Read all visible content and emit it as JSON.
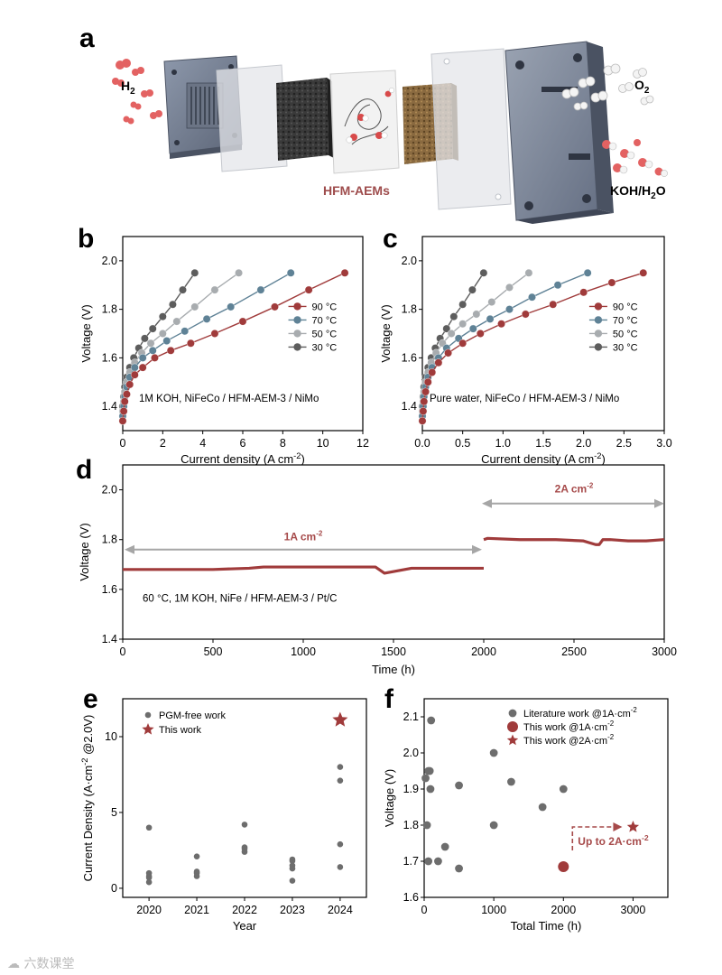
{
  "panel_labels": {
    "a": "a",
    "b": "b",
    "c": "c",
    "d": "d",
    "e": "e",
    "f": "f"
  },
  "panel_a": {
    "h2_label": "H",
    "h2_sub": "2",
    "o2_label": "O",
    "o2_sub": "2",
    "koh_label": "KOH/H",
    "koh_sub": "2",
    "koh_tail": "O",
    "membrane_label": "HFM-AEMs"
  },
  "colors": {
    "c90": "#a03b3b",
    "c70": "#5f8296",
    "c50": "#a8acaf",
    "c30": "#5d5d5d",
    "accent": "#a64a4a",
    "gray_point": "#6d6d6d",
    "arrow_gray": "#a6a6a6"
  },
  "chart_data": [
    {
      "panel": "b",
      "type": "line",
      "xlabel": "Current density (A cm⁻²)",
      "ylabel": "Voltage (V)",
      "xlim": [
        0,
        12
      ],
      "ylim": [
        1.3,
        2.1
      ],
      "xticks": [
        "0",
        "2",
        "4",
        "6",
        "8",
        "10",
        "12"
      ],
      "yticks": [
        "1.4",
        "1.6",
        "1.8",
        "2.0"
      ],
      "annotation": "1M KOH, NiFeCo / HFM-AEM-3 / NiMo",
      "legend_position": "center-right",
      "series": [
        {
          "name": "90 °C",
          "color_key": "c90",
          "x": [
            0,
            0.05,
            0.1,
            0.2,
            0.35,
            0.6,
            1.0,
            1.6,
            2.4,
            3.4,
            4.6,
            6.0,
            7.6,
            9.3,
            11.1
          ],
          "y": [
            1.34,
            1.38,
            1.42,
            1.45,
            1.49,
            1.53,
            1.56,
            1.6,
            1.63,
            1.66,
            1.7,
            1.75,
            1.81,
            1.88,
            1.95
          ]
        },
        {
          "name": "70 °C",
          "color_key": "c70",
          "x": [
            0,
            0.05,
            0.1,
            0.2,
            0.35,
            0.6,
            1.0,
            1.5,
            2.2,
            3.1,
            4.2,
            5.4,
            6.9,
            8.4
          ],
          "y": [
            1.36,
            1.4,
            1.44,
            1.48,
            1.52,
            1.56,
            1.6,
            1.63,
            1.67,
            1.71,
            1.76,
            1.81,
            1.88,
            1.95
          ]
        },
        {
          "name": "50 °C",
          "color_key": "c50",
          "x": [
            0,
            0.05,
            0.1,
            0.2,
            0.35,
            0.6,
            0.95,
            1.4,
            2.0,
            2.7,
            3.6,
            4.6,
            5.8
          ],
          "y": [
            1.38,
            1.42,
            1.46,
            1.5,
            1.54,
            1.58,
            1.62,
            1.66,
            1.7,
            1.75,
            1.81,
            1.88,
            1.95
          ]
        },
        {
          "name": "30 °C",
          "color_key": "c30",
          "x": [
            0,
            0.05,
            0.1,
            0.2,
            0.35,
            0.55,
            0.8,
            1.1,
            1.5,
            2.0,
            2.5,
            3.0,
            3.6
          ],
          "y": [
            1.4,
            1.44,
            1.48,
            1.52,
            1.56,
            1.6,
            1.64,
            1.68,
            1.72,
            1.77,
            1.82,
            1.88,
            1.95
          ]
        }
      ]
    },
    {
      "panel": "c",
      "type": "line",
      "xlabel": "Current density (A cm⁻²)",
      "ylabel": "Voltage (V)",
      "xlim": [
        0,
        3
      ],
      "ylim": [
        1.3,
        2.1
      ],
      "xticks": [
        "0.0",
        "0.5",
        "1.0",
        "1.5",
        "2.0",
        "2.5",
        "3.0"
      ],
      "yticks": [
        "1.4",
        "1.6",
        "1.8",
        "2.0"
      ],
      "annotation": "Pure water, NiFeCo / HFM-AEM-3 / NiMo",
      "legend_position": "center-right",
      "series": [
        {
          "name": "90 °C",
          "color_key": "c90",
          "x": [
            0,
            0.01,
            0.02,
            0.04,
            0.07,
            0.12,
            0.2,
            0.32,
            0.5,
            0.72,
            0.98,
            1.28,
            1.62,
            2.0,
            2.35,
            2.74
          ],
          "y": [
            1.34,
            1.38,
            1.42,
            1.46,
            1.5,
            1.54,
            1.58,
            1.62,
            1.66,
            1.7,
            1.74,
            1.78,
            1.82,
            1.87,
            1.91,
            1.95
          ]
        },
        {
          "name": "70 °C",
          "color_key": "c70",
          "x": [
            0,
            0.01,
            0.02,
            0.04,
            0.07,
            0.12,
            0.2,
            0.3,
            0.45,
            0.63,
            0.84,
            1.08,
            1.36,
            1.68,
            2.05
          ],
          "y": [
            1.36,
            1.4,
            1.44,
            1.48,
            1.52,
            1.56,
            1.6,
            1.64,
            1.68,
            1.72,
            1.76,
            1.8,
            1.85,
            1.9,
            1.95
          ]
        },
        {
          "name": "50 °C",
          "color_key": "c50",
          "x": [
            0,
            0.01,
            0.02,
            0.04,
            0.07,
            0.11,
            0.17,
            0.25,
            0.36,
            0.5,
            0.67,
            0.86,
            1.08,
            1.32
          ],
          "y": [
            1.38,
            1.42,
            1.46,
            1.5,
            1.54,
            1.58,
            1.62,
            1.66,
            1.7,
            1.74,
            1.78,
            1.83,
            1.89,
            1.95
          ]
        },
        {
          "name": "30 °C",
          "color_key": "c30",
          "x": [
            0,
            0.01,
            0.02,
            0.04,
            0.07,
            0.11,
            0.16,
            0.22,
            0.3,
            0.39,
            0.5,
            0.62,
            0.76
          ],
          "y": [
            1.4,
            1.44,
            1.48,
            1.52,
            1.56,
            1.6,
            1.64,
            1.68,
            1.72,
            1.77,
            1.82,
            1.88,
            1.95
          ]
        }
      ]
    },
    {
      "panel": "d",
      "type": "line",
      "xlabel": "Time (h)",
      "ylabel": "Voltage (V)",
      "xlim": [
        0,
        3000
      ],
      "ylim": [
        1.4,
        2.1
      ],
      "xticks": [
        "0",
        "500",
        "1000",
        "1500",
        "2000",
        "2500",
        "3000"
      ],
      "yticks": [
        "1.4",
        "1.6",
        "1.8",
        "2.0"
      ],
      "annotation": "60 °C, 1M KOH, NiFe / HFM-AEM-3 / Pt/C",
      "arrow_labels": [
        "1A cm",
        "2A cm"
      ],
      "arrow_label_sup": "-2",
      "series": [
        {
          "name": "1A segment",
          "color_key": "c90",
          "x": [
            0,
            250,
            500,
            700,
            780,
            1000,
            1200,
            1400,
            1450,
            1600,
            1800,
            2000
          ],
          "y": [
            1.68,
            1.68,
            1.68,
            1.685,
            1.69,
            1.69,
            1.69,
            1.69,
            1.665,
            1.685,
            1.685,
            1.685
          ]
        },
        {
          "name": "2A segment",
          "color_key": "c90",
          "x": [
            2000,
            2020,
            2200,
            2400,
            2550,
            2620,
            2640,
            2660,
            2700,
            2800,
            2900,
            3000
          ],
          "y": [
            1.8,
            1.805,
            1.8,
            1.8,
            1.795,
            1.78,
            1.78,
            1.8,
            1.8,
            1.795,
            1.795,
            1.8
          ]
        }
      ]
    },
    {
      "panel": "e",
      "type": "scatter",
      "xlabel": "Year",
      "ylabel": "Current Density (A·cm⁻² @2.0V)",
      "xlim": [
        2019.45,
        2024.55
      ],
      "ylim": [
        -0.6,
        12.5
      ],
      "xticks": [
        "2020",
        "2021",
        "2022",
        "2023",
        "2024"
      ],
      "yticks": [
        "0",
        "5",
        "10"
      ],
      "legend_position": "top-left",
      "series": [
        {
          "name": "PGM-free work",
          "color_key": "gray_point",
          "x": [
            2020,
            2020,
            2020,
            2020,
            2020,
            2021,
            2021,
            2021,
            2021,
            2022,
            2022,
            2022,
            2022,
            2023,
            2023,
            2023,
            2023,
            2023,
            2024,
            2024,
            2024,
            2024
          ],
          "y": [
            4.0,
            1.0,
            0.8,
            0.7,
            0.4,
            2.1,
            1.1,
            1.0,
            0.8,
            4.2,
            2.7,
            2.6,
            2.4,
            1.9,
            1.8,
            1.5,
            1.3,
            0.5,
            8.0,
            7.1,
            2.9,
            1.4
          ]
        },
        {
          "name": "This work",
          "color_key": "c90",
          "marker": "star",
          "x": [
            2024
          ],
          "y": [
            11.1
          ]
        }
      ]
    },
    {
      "panel": "f",
      "type": "scatter",
      "xlabel": "Total Time (h)",
      "ylabel": "Voltage (V)",
      "xlim": [
        0,
        3500
      ],
      "ylim": [
        1.6,
        2.15
      ],
      "xticks": [
        "0",
        "1000",
        "2000",
        "3000"
      ],
      "yticks": [
        "1.6",
        "1.7",
        "1.8",
        "1.9",
        "2.0",
        "2.1"
      ],
      "legend_position": "top-right",
      "annotation": "Up to 2A·cm⁻²",
      "series": [
        {
          "name": "Literature work @1A·cm⁻²",
          "color_key": "gray_point",
          "x": [
            20,
            40,
            60,
            90,
            80,
            100,
            60,
            200,
            300,
            500,
            500,
            1000,
            1000,
            1250,
            1700,
            2000
          ],
          "y": [
            1.93,
            1.8,
            1.7,
            1.9,
            1.95,
            2.09,
            1.95,
            1.7,
            1.74,
            1.68,
            1.91,
            2.0,
            1.8,
            1.92,
            1.85,
            1.9
          ]
        },
        {
          "name": "This work @1A·cm⁻²",
          "color_key": "c90",
          "marker": "circle",
          "x": [
            2000
          ],
          "y": [
            1.685
          ]
        },
        {
          "name": "This work @2A·cm⁻²",
          "color_key": "c90",
          "marker": "star",
          "x": [
            3000
          ],
          "y": [
            1.795
          ]
        }
      ]
    }
  ],
  "watermark": "☁ 六数课堂"
}
